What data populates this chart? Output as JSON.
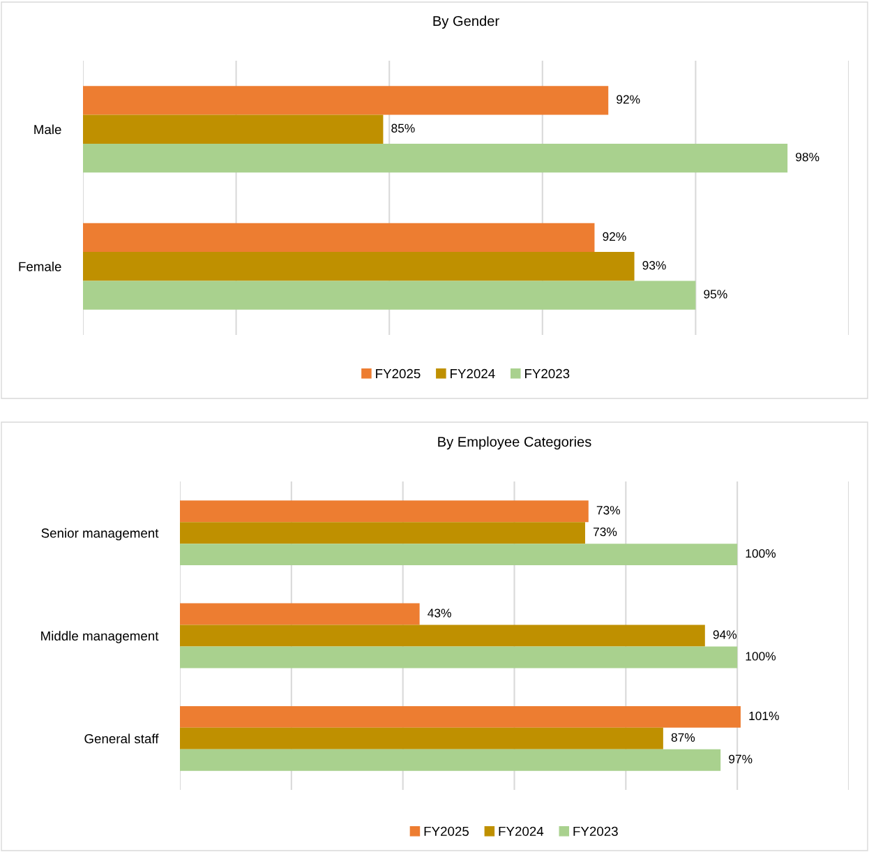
{
  "chart_data": [
    {
      "type": "bar",
      "orientation": "horizontal",
      "title": "By Gender",
      "categories": [
        "Male",
        "Female"
      ],
      "series": [
        {
          "name": "FY2025",
          "color": "#ed7d31",
          "values": [
            92.15,
            91.7
          ],
          "value_labels": [
            "92%",
            "92%"
          ]
        },
        {
          "name": "FY2024",
          "color": "#bf9000",
          "values": [
            84.8,
            93.0
          ],
          "value_labels": [
            "85%",
            "93%"
          ]
        },
        {
          "name": "FY2023",
          "color": "#a9d18e",
          "values": [
            98.0,
            95.0
          ],
          "value_labels": [
            "98%",
            "95%"
          ]
        }
      ],
      "xlim": [
        75,
        100
      ],
      "xticks": [
        {
          "value": 75,
          "label": null
        },
        {
          "value": 80,
          "label": null
        },
        {
          "value": 85,
          "label": null
        },
        {
          "value": 90,
          "label": null
        },
        {
          "value": 95,
          "label": null
        },
        {
          "value": 100,
          "label": null
        }
      ],
      "tick_labels": "y",
      "grid": "x",
      "legend": "bottom"
    },
    {
      "type": "bar",
      "orientation": "horizontal",
      "title": "By Employee Categories",
      "categories": [
        "Senior management",
        "Middle management",
        "General staff"
      ],
      "series": [
        {
          "name": "FY2025",
          "color": "#ed7d31",
          "values": [
            73.3,
            43.0,
            100.6
          ],
          "value_labels": [
            "73%",
            "43%",
            "101%"
          ]
        },
        {
          "name": "FY2024",
          "color": "#bf9000",
          "values": [
            72.7,
            94.2,
            86.7
          ],
          "value_labels": [
            "73%",
            "94%",
            "87%"
          ]
        },
        {
          "name": "FY2023",
          "color": "#a9d18e",
          "values": [
            100.0,
            100.0,
            97.0
          ],
          "value_labels": [
            "100%",
            "100%",
            "97%"
          ]
        }
      ],
      "xlim": [
        0,
        120
      ],
      "xticks": [
        {
          "value": 0,
          "label": null
        },
        {
          "value": 20,
          "label": null
        },
        {
          "value": 40,
          "label": null
        },
        {
          "value": 60,
          "label": null
        },
        {
          "value": 80,
          "label": null
        },
        {
          "value": 100,
          "label": null
        },
        {
          "value": 120,
          "label": null
        }
      ],
      "tick_labels": "y",
      "grid": "x",
      "legend": "bottom"
    }
  ]
}
